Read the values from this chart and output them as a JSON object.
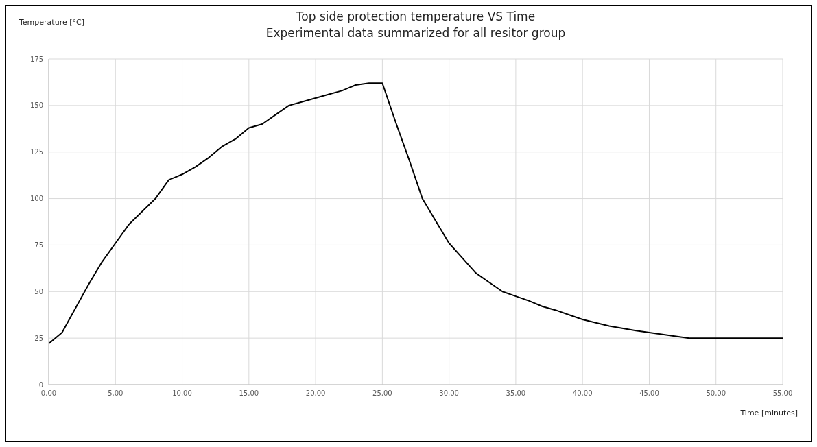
{
  "chart_data": {
    "type": "line",
    "title": "Top side protection temperature VS Time",
    "subtitle": "Experimental data summarized for all resitor group",
    "xlabel": "Time  [minutes]",
    "ylabel": "Temperature [°C]",
    "x": [
      0,
      1,
      2,
      3,
      4,
      5,
      6,
      7,
      8,
      9,
      10,
      11,
      12,
      13,
      14,
      15,
      16,
      17,
      18,
      19,
      20,
      21,
      22,
      23,
      24,
      25,
      26,
      27,
      28,
      29,
      30,
      31,
      32,
      33,
      34,
      35,
      36,
      37,
      38,
      39,
      40,
      42,
      44,
      46,
      48,
      55
    ],
    "series": [
      {
        "color": "#000000",
        "values": [
          22,
          28,
          41,
          54,
          66,
          76,
          86,
          93,
          100,
          110,
          113,
          117,
          122,
          128,
          132,
          138,
          140,
          145,
          150,
          152,
          154,
          156,
          158,
          161,
          162,
          162,
          141,
          121,
          100,
          88,
          76,
          68,
          60,
          55,
          50,
          47.5,
          45,
          42,
          40,
          37.5,
          35,
          31.5,
          29,
          27,
          25,
          25
        ]
      }
    ],
    "xlim": [
      0,
      55
    ],
    "xticks": [
      {
        "value": 0,
        "label": "0,00"
      },
      {
        "value": 5,
        "label": "5,00"
      },
      {
        "value": 10,
        "label": "10,00"
      },
      {
        "value": 15,
        "label": "15,00"
      },
      {
        "value": 20,
        "label": "20,00"
      },
      {
        "value": 25,
        "label": "25,00"
      },
      {
        "value": 30,
        "label": "30,00"
      },
      {
        "value": 35,
        "label": "35,00"
      },
      {
        "value": 40,
        "label": "40,00"
      },
      {
        "value": 45,
        "label": "45,00"
      },
      {
        "value": 50,
        "label": "50,00"
      },
      {
        "value": 55,
        "label": "55,00"
      }
    ],
    "ylim": [
      0,
      175
    ],
    "yticks": [
      0,
      25,
      50,
      75,
      100,
      125,
      150,
      175
    ],
    "grid": true,
    "marker": "none",
    "line_style": "solid"
  }
}
